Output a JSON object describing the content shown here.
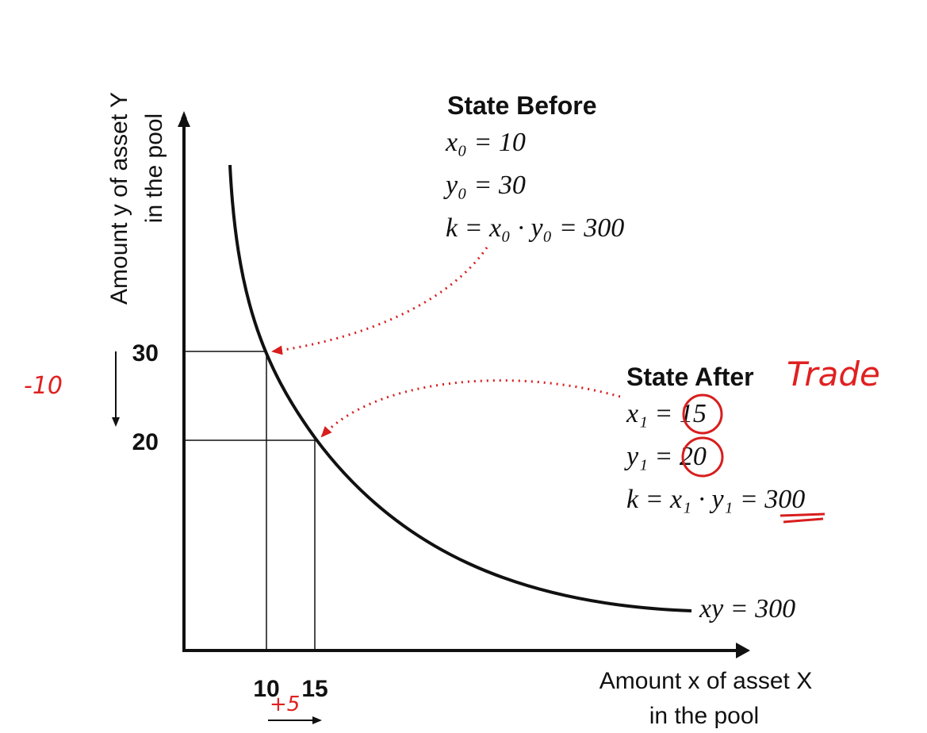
{
  "axes": {
    "y_label": [
      "Amount y of asset Y",
      "in the pool"
    ],
    "x_label": [
      "Amount x of asset X",
      "in the pool"
    ],
    "x_ticks": [
      "10",
      "15"
    ],
    "y_ticks": [
      "30",
      "20"
    ]
  },
  "curve_label": "xy = 300",
  "state_before": {
    "title": "State Before",
    "lines": [
      "x₀ = 10",
      "y₀ = 30",
      "k = x₀ · y₀ = 300"
    ]
  },
  "state_after": {
    "title": "State After",
    "lines": [
      "x₁ = 15",
      "y₁ = 20",
      "k = x₁ · y₁ = 300"
    ]
  },
  "handwritten": {
    "trade": "Trade",
    "y_change": "-10",
    "x_change": "+5"
  }
}
